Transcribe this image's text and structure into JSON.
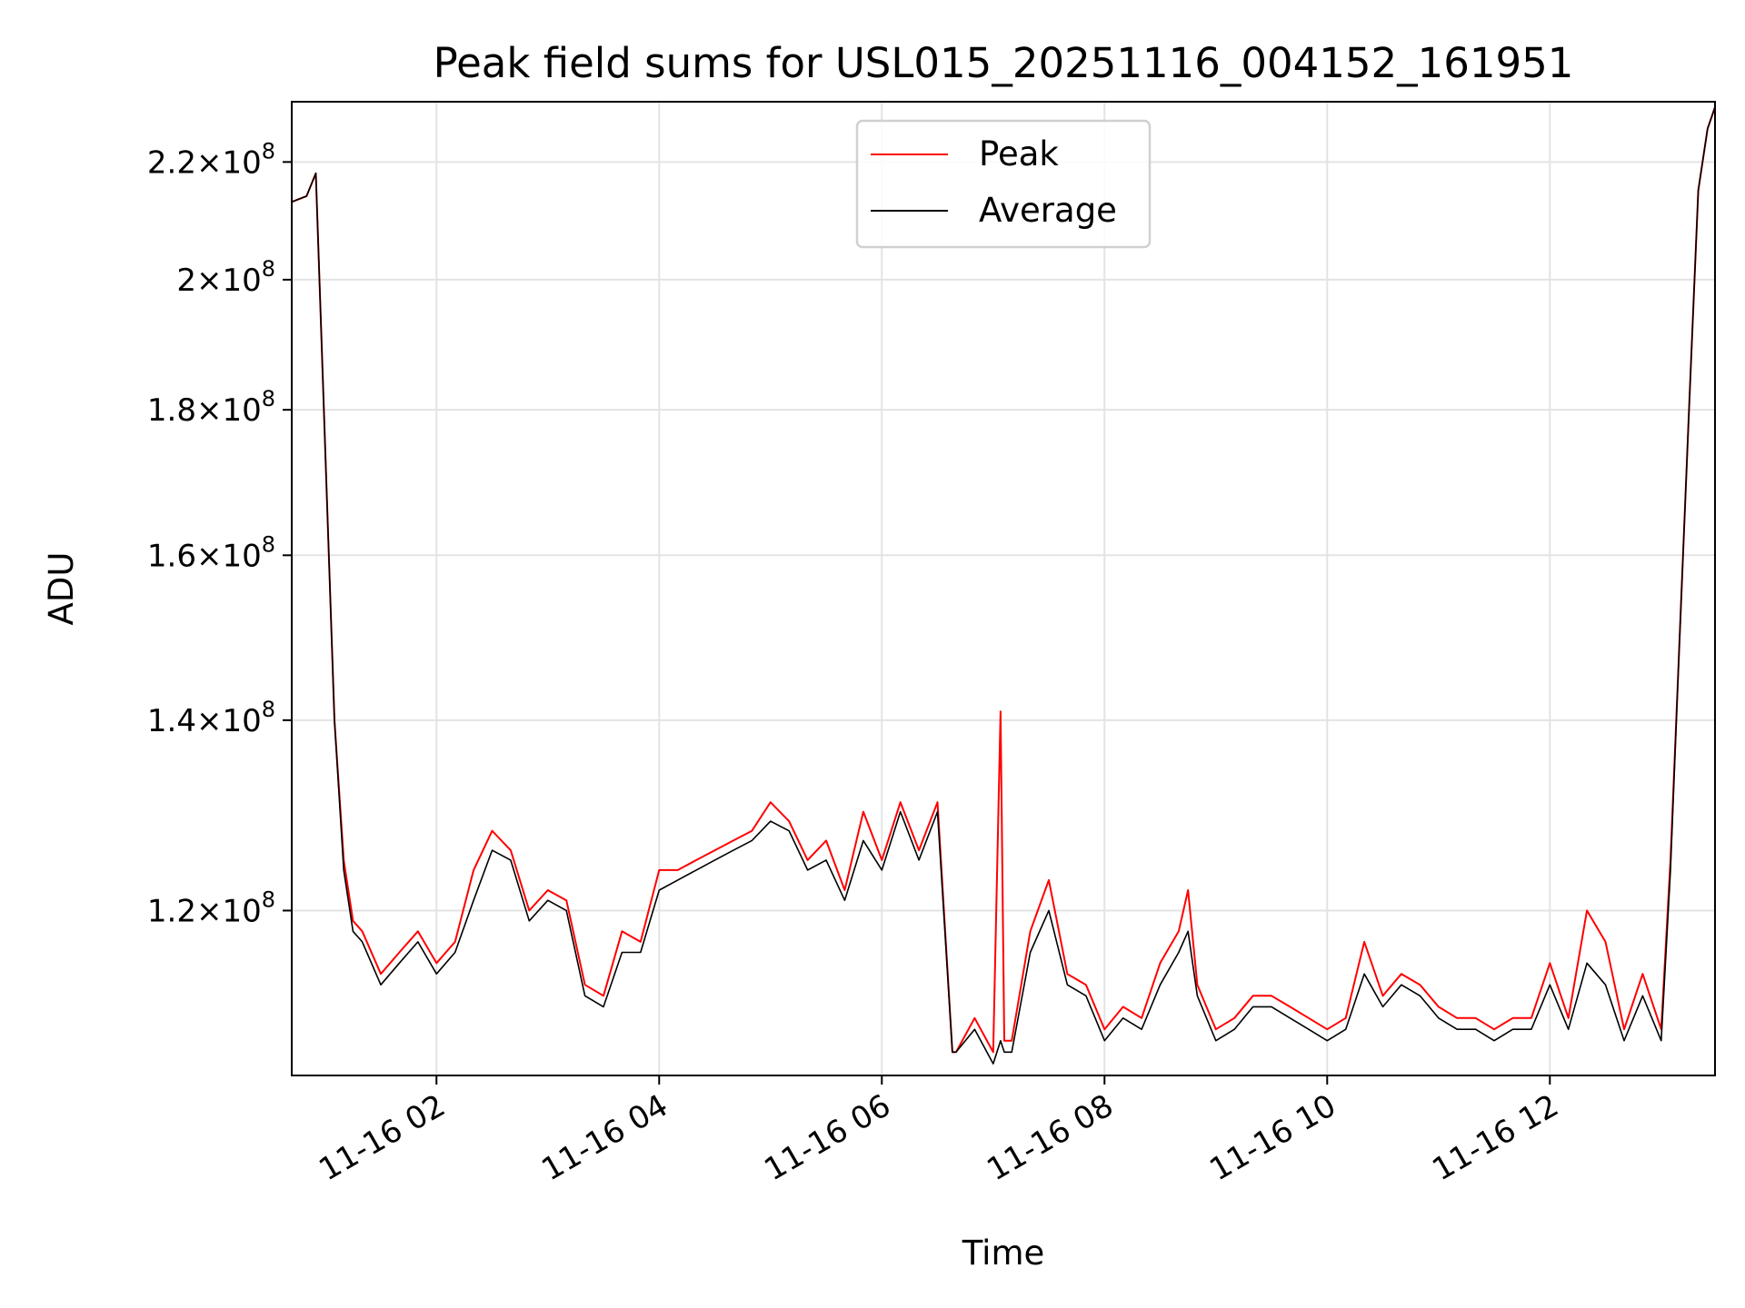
{
  "chart_data": {
    "type": "line",
    "title": "Peak field sums for USL015_20251116_004152_161951",
    "xlabel": "Time",
    "ylabel": "ADU",
    "y_scale": "log",
    "grid": true,
    "legend_position": "top-center",
    "x_range": [
      "2025-11-16 00:42",
      "2025-11-16 13:29"
    ],
    "ylim": [
      105000000,
      231000000
    ],
    "x_ticks": [
      "11-16 02",
      "11-16 04",
      "11-16 06",
      "11-16 08",
      "11-16 10",
      "11-16 12"
    ],
    "y_ticks": [
      {
        "value": 120000000,
        "mantissa": "1.2",
        "base": "10",
        "exponent": "8"
      },
      {
        "value": 140000000,
        "mantissa": "1.4",
        "base": "10",
        "exponent": "8"
      },
      {
        "value": 160000000,
        "mantissa": "1.6",
        "base": "10",
        "exponent": "8"
      },
      {
        "value": 180000000,
        "mantissa": "1.8",
        "base": "10",
        "exponent": "8"
      },
      {
        "value": 200000000,
        "mantissa": "2",
        "base": "10",
        "exponent": "8"
      },
      {
        "value": 220000000,
        "mantissa": "2.2",
        "base": "10",
        "exponent": "8"
      }
    ],
    "series": [
      {
        "name": "Peak",
        "color": "#ff0000",
        "x": [
          "00:42",
          "00:50",
          "00:55",
          "01:05",
          "01:10",
          "01:15",
          "01:20",
          "01:30",
          "01:40",
          "01:50",
          "02:00",
          "02:10",
          "02:20",
          "02:30",
          "02:40",
          "02:50",
          "03:00",
          "03:10",
          "03:20",
          "03:30",
          "03:40",
          "03:50",
          "04:00",
          "04:10",
          "04:20",
          "04:30",
          "04:40",
          "04:50",
          "05:00",
          "05:10",
          "05:20",
          "05:30",
          "05:40",
          "05:50",
          "06:00",
          "06:10",
          "06:20",
          "06:30",
          "06:38",
          "06:40",
          "06:50",
          "07:00",
          "07:04",
          "07:06",
          "07:10",
          "07:20",
          "07:30",
          "07:40",
          "07:50",
          "08:00",
          "08:10",
          "08:20",
          "08:30",
          "08:40",
          "08:45",
          "08:50",
          "09:00",
          "09:10",
          "09:20",
          "09:30",
          "09:40",
          "09:50",
          "10:00",
          "10:10",
          "10:20",
          "10:30",
          "10:40",
          "10:50",
          "11:00",
          "11:10",
          "11:20",
          "11:30",
          "11:40",
          "11:50",
          "12:00",
          "12:10",
          "12:20",
          "12:30",
          "12:40",
          "12:50",
          "13:00",
          "13:05",
          "13:10",
          "13:15",
          "13:20",
          "13:25",
          "13:29"
        ],
        "y": [
          213,
          214,
          218,
          140,
          125,
          119,
          118,
          114,
          116,
          118,
          115,
          117,
          124,
          128,
          126,
          120,
          122,
          121,
          113,
          112,
          118,
          117,
          124,
          124,
          125,
          126,
          127,
          128,
          131,
          129,
          125,
          127,
          122,
          130,
          125,
          131,
          126,
          131,
          107,
          107,
          110,
          107,
          141,
          108,
          108,
          118,
          123,
          114,
          113,
          109,
          111,
          110,
          115,
          118,
          122,
          113,
          109,
          110,
          112,
          112,
          111,
          110,
          109,
          110,
          117,
          112,
          114,
          113,
          111,
          110,
          110,
          109,
          110,
          110,
          115,
          110,
          120,
          117,
          109,
          114,
          109,
          125,
          150,
          180,
          215,
          226,
          230
        ]
      },
      {
        "name": "Average",
        "color": "#000000",
        "x": [
          "00:42",
          "00:50",
          "00:55",
          "01:05",
          "01:10",
          "01:15",
          "01:20",
          "01:30",
          "01:40",
          "01:50",
          "02:00",
          "02:10",
          "02:20",
          "02:30",
          "02:40",
          "02:50",
          "03:00",
          "03:10",
          "03:20",
          "03:30",
          "03:40",
          "03:50",
          "04:00",
          "04:10",
          "04:20",
          "04:30",
          "04:40",
          "04:50",
          "05:00",
          "05:10",
          "05:20",
          "05:30",
          "05:40",
          "05:50",
          "06:00",
          "06:10",
          "06:20",
          "06:30",
          "06:38",
          "06:40",
          "06:50",
          "07:00",
          "07:04",
          "07:06",
          "07:10",
          "07:20",
          "07:30",
          "07:40",
          "07:50",
          "08:00",
          "08:10",
          "08:20",
          "08:30",
          "08:40",
          "08:45",
          "08:50",
          "09:00",
          "09:10",
          "09:20",
          "09:30",
          "09:40",
          "09:50",
          "10:00",
          "10:10",
          "10:20",
          "10:30",
          "10:40",
          "10:50",
          "11:00",
          "11:10",
          "11:20",
          "11:30",
          "11:40",
          "11:50",
          "12:00",
          "12:10",
          "12:20",
          "12:30",
          "12:40",
          "12:50",
          "13:00",
          "13:05",
          "13:10",
          "13:15",
          "13:20",
          "13:25",
          "13:29"
        ],
        "y": [
          213,
          214,
          218,
          140,
          124,
          118,
          117,
          113,
          115,
          117,
          114,
          116,
          121,
          126,
          125,
          119,
          121,
          120,
          112,
          111,
          116,
          116,
          122,
          123,
          124,
          125,
          126,
          127,
          129,
          128,
          124,
          125,
          121,
          127,
          124,
          130,
          125,
          130,
          107,
          107,
          109,
          106,
          108,
          107,
          107,
          116,
          120,
          113,
          112,
          108,
          110,
          109,
          113,
          116,
          118,
          112,
          108,
          109,
          111,
          111,
          110,
          109,
          108,
          109,
          114,
          111,
          113,
          112,
          110,
          109,
          109,
          108,
          109,
          109,
          113,
          109,
          115,
          113,
          108,
          112,
          108,
          124,
          150,
          180,
          215,
          226,
          230
        ]
      }
    ]
  }
}
